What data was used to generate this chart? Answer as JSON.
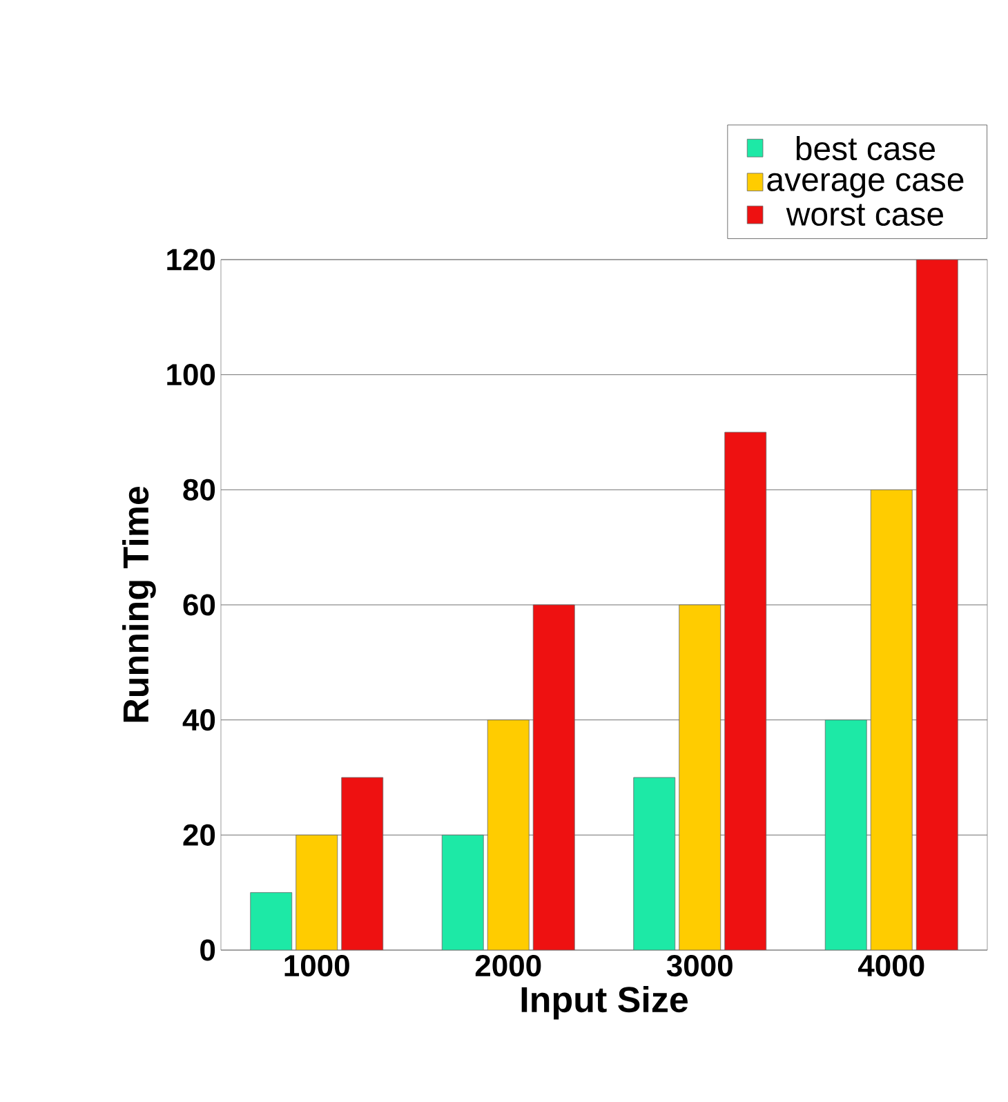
{
  "chart_data": {
    "type": "bar",
    "xlabel": "Input Size",
    "ylabel": "Running Time",
    "categories": [
      "1000",
      "2000",
      "3000",
      "4000"
    ],
    "series": [
      {
        "name": "best case",
        "color": "#1de9a6",
        "values": [
          10,
          20,
          30,
          40
        ]
      },
      {
        "name": "average case",
        "color": "#ffcc00",
        "values": [
          20,
          40,
          60,
          80
        ]
      },
      {
        "name": "worst case",
        "color": "#ee1111",
        "values": [
          30,
          60,
          90,
          120
        ]
      }
    ],
    "ylim": [
      0,
      120
    ],
    "yticks": [
      0,
      20,
      40,
      60,
      80,
      100,
      120
    ],
    "grid": "y",
    "legend": "top right"
  }
}
